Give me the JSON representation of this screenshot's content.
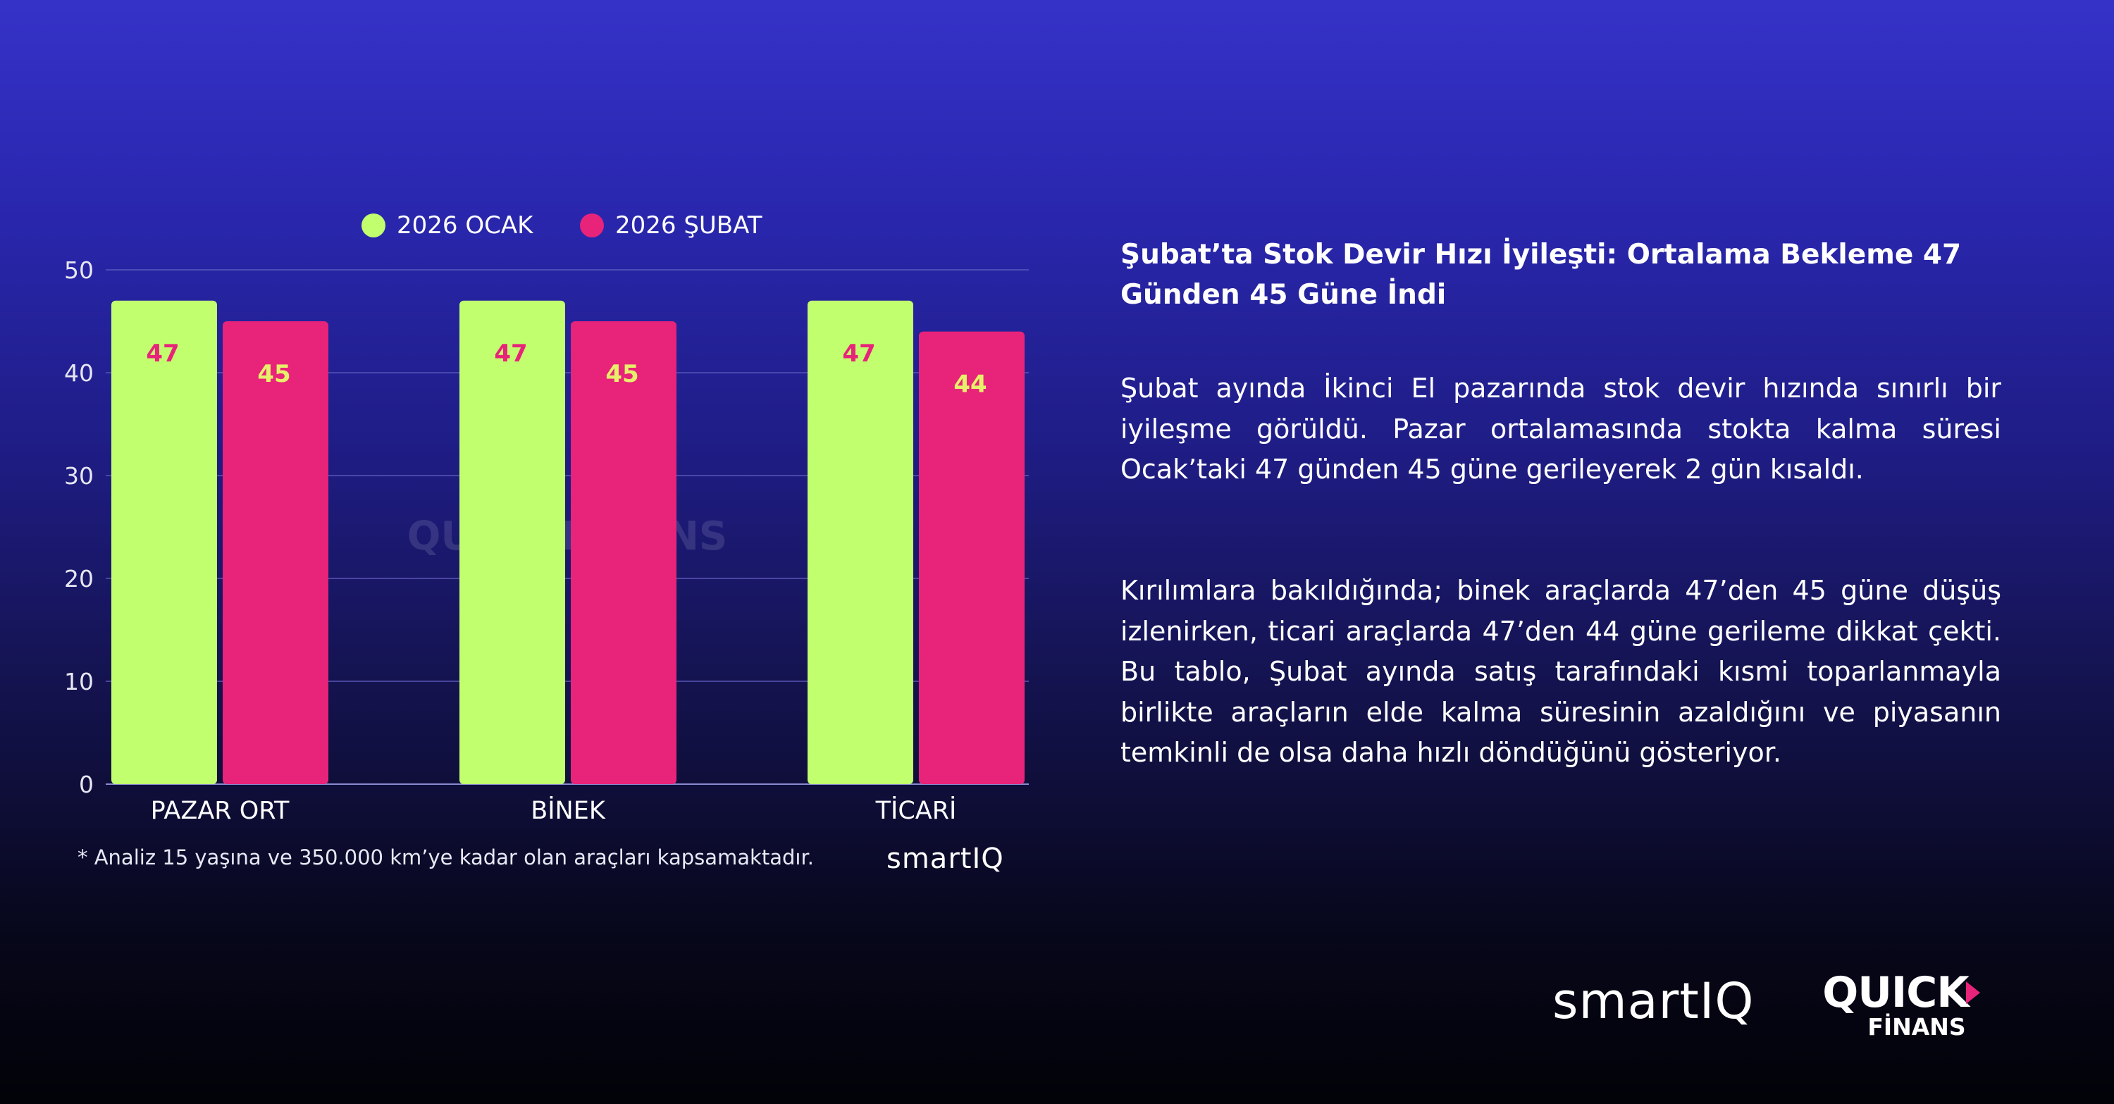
{
  "chart_data": {
    "type": "bar",
    "categories": [
      "PAZAR ORT",
      "BİNEK",
      "TİCARİ"
    ],
    "series": [
      {
        "name": "2026 OCAK",
        "color": "#c1ff6e",
        "values": [
          47,
          47,
          47
        ]
      },
      {
        "name": "2026 ŞUBAT",
        "color": "#e8237a",
        "values": [
          45,
          45,
          44
        ]
      }
    ],
    "ylim": [
      0,
      50
    ],
    "yticks": [
      0,
      10,
      20,
      30,
      40,
      50
    ],
    "grid": true,
    "legend": "top",
    "data_labels": true,
    "title": "",
    "xlabel": "",
    "ylabel": ""
  },
  "watermark": "QUICK FİNANS",
  "footnote": "* Analiz 15 yaşına ve 350.000 km’ye kadar olan araçları kapsamaktadır.",
  "chart_brand": "smartIQ",
  "headline": "Şubat’ta Stok Devir Hızı İyileşti: Ortalama Bekleme 47 Günden 45 Güne İndi",
  "paragraphs": [
    "Şubat ayında İkinci El pazarında stok devir hızında sınırlı bir iyileşme görüldü. Pazar ortalamasında stokta kalma süresi Ocak’taki 47 günden 45 güne gerileyerek 2 gün kısaldı.",
    "Kırılımlara bakıldığında; binek araçlarda 47’den 45 güne düşüş izlenirken, ticari araçlarda 47’den 44 güne gerileme dikkat çekti. Bu tablo, Şubat ayında satış tarafındaki kısmi toparlanmayla birlikte araçların elde kalma süresinin azaldığını ve piyasanın temkinli de olsa daha hızlı döndüğünü gösteriyor."
  ],
  "footer_logos": {
    "smartiq": "smartIQ",
    "quick_top": "QUICK",
    "quick_bottom": "FİNANS"
  }
}
